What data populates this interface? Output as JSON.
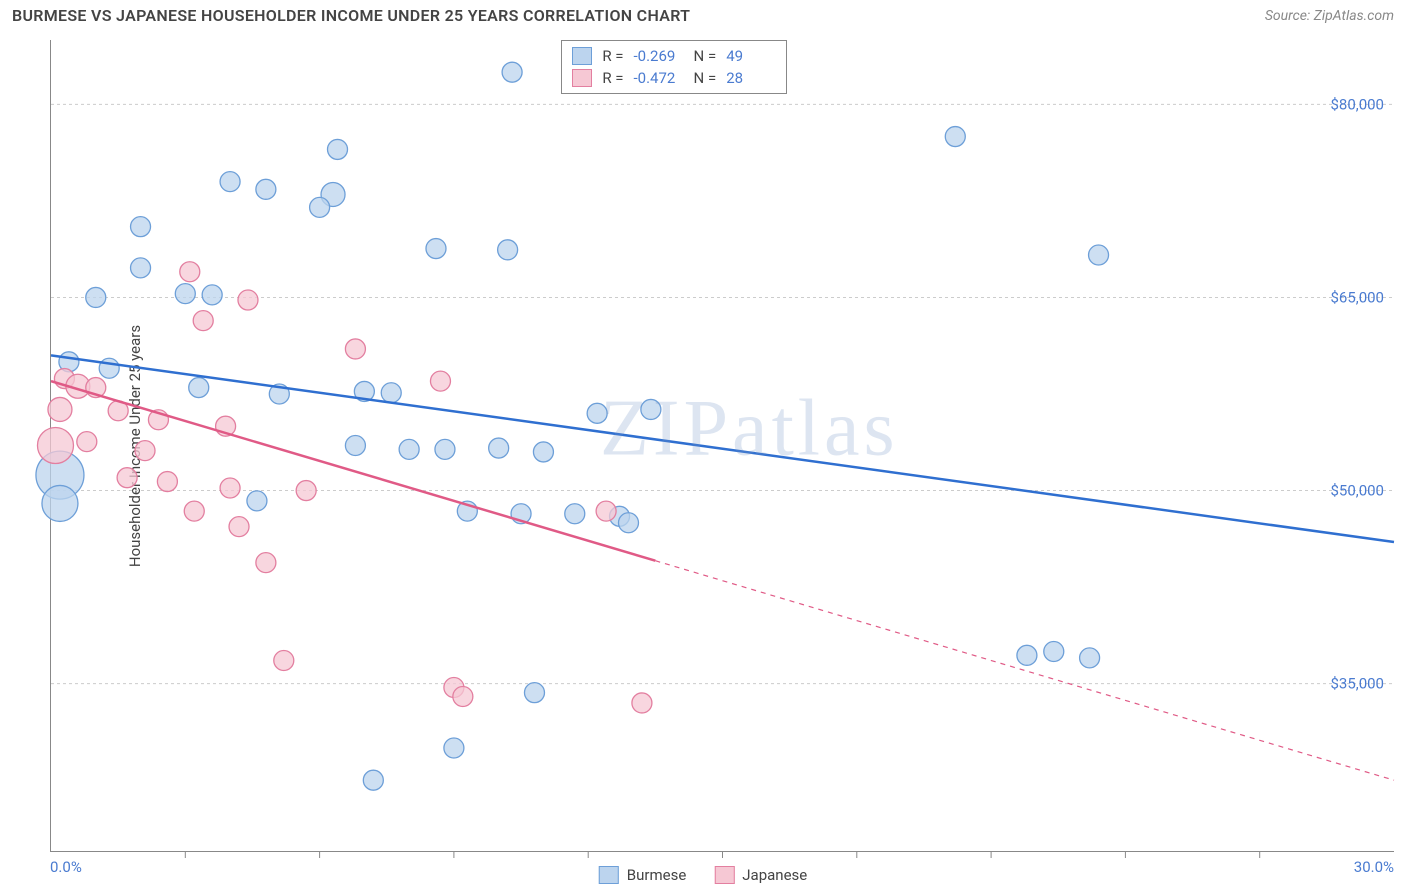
{
  "header": {
    "title": "BURMESE VS JAPANESE HOUSEHOLDER INCOME UNDER 25 YEARS CORRELATION CHART",
    "source": "Source: ZipAtlas.com"
  },
  "watermark": "ZIPatlas",
  "chart": {
    "type": "scatter",
    "y_axis_title": "Householder Income Under 25 years",
    "background_color": "#ffffff",
    "grid_color": "#cccccc",
    "axis_color": "#888888",
    "xlim": [
      0,
      30
    ],
    "ylim": [
      22000,
      85000
    ],
    "x_corner_labels": [
      "0.0%",
      "30.0%"
    ],
    "x_tick_positions": [
      3,
      6,
      9,
      12,
      15,
      18,
      21,
      24,
      27
    ],
    "y_ticks": [
      {
        "v": 35000,
        "label": "$35,000"
      },
      {
        "v": 50000,
        "label": "$50,000"
      },
      {
        "v": 65000,
        "label": "$65,000"
      },
      {
        "v": 80000,
        "label": "$80,000"
      }
    ],
    "series": [
      {
        "key": "burmese",
        "label": "Burmese",
        "marker_fill": "#bcd4ee",
        "marker_stroke": "#6d9fd8",
        "marker_fill_opacity": 0.75,
        "line_color": "#2f6fd0",
        "line_width": 2.5,
        "trend": {
          "x1": 0,
          "y1": 60500,
          "x2": 30,
          "y2": 46000,
          "dash_after_x": null
        },
        "stats": {
          "R": "-0.269",
          "N": "49"
        },
        "points": [
          {
            "x": 10.3,
            "y": 82500,
            "r": 10
          },
          {
            "x": 6.4,
            "y": 76500,
            "r": 10
          },
          {
            "x": 20.2,
            "y": 77500,
            "r": 10
          },
          {
            "x": 4.0,
            "y": 74000,
            "r": 10
          },
          {
            "x": 4.8,
            "y": 73400,
            "r": 10
          },
          {
            "x": 6.3,
            "y": 73000,
            "r": 12
          },
          {
            "x": 6.0,
            "y": 72000,
            "r": 10
          },
          {
            "x": 2.0,
            "y": 70500,
            "r": 10
          },
          {
            "x": 8.6,
            "y": 68800,
            "r": 10
          },
          {
            "x": 10.2,
            "y": 68700,
            "r": 10
          },
          {
            "x": 23.4,
            "y": 68300,
            "r": 10
          },
          {
            "x": 2.0,
            "y": 67300,
            "r": 10
          },
          {
            "x": 1.0,
            "y": 65000,
            "r": 10
          },
          {
            "x": 3.0,
            "y": 65300,
            "r": 10
          },
          {
            "x": 3.6,
            "y": 65200,
            "r": 10
          },
          {
            "x": 0.4,
            "y": 60000,
            "r": 10
          },
          {
            "x": 1.3,
            "y": 59500,
            "r": 10
          },
          {
            "x": 3.3,
            "y": 58000,
            "r": 10
          },
          {
            "x": 5.1,
            "y": 57500,
            "r": 10
          },
          {
            "x": 7.0,
            "y": 57700,
            "r": 10
          },
          {
            "x": 7.6,
            "y": 57600,
            "r": 10
          },
          {
            "x": 12.2,
            "y": 56000,
            "r": 10
          },
          {
            "x": 13.4,
            "y": 56300,
            "r": 10
          },
          {
            "x": 6.8,
            "y": 53500,
            "r": 10
          },
          {
            "x": 8.0,
            "y": 53200,
            "r": 10
          },
          {
            "x": 8.8,
            "y": 53200,
            "r": 10
          },
          {
            "x": 10.0,
            "y": 53300,
            "r": 10
          },
          {
            "x": 11.0,
            "y": 53000,
            "r": 10
          },
          {
            "x": 0.2,
            "y": 51200,
            "r": 24
          },
          {
            "x": 0.2,
            "y": 49000,
            "r": 18
          },
          {
            "x": 4.6,
            "y": 49200,
            "r": 10
          },
          {
            "x": 9.3,
            "y": 48400,
            "r": 10
          },
          {
            "x": 10.5,
            "y": 48200,
            "r": 10
          },
          {
            "x": 11.7,
            "y": 48200,
            "r": 10
          },
          {
            "x": 12.7,
            "y": 48000,
            "r": 10
          },
          {
            "x": 12.9,
            "y": 47500,
            "r": 10
          },
          {
            "x": 21.8,
            "y": 37200,
            "r": 10
          },
          {
            "x": 22.4,
            "y": 37500,
            "r": 10
          },
          {
            "x": 23.2,
            "y": 37000,
            "r": 10
          },
          {
            "x": 10.8,
            "y": 34300,
            "r": 10
          },
          {
            "x": 9.0,
            "y": 30000,
            "r": 10
          },
          {
            "x": 7.2,
            "y": 27500,
            "r": 10
          }
        ]
      },
      {
        "key": "japanese",
        "label": "Japanese",
        "marker_fill": "#f6c8d4",
        "marker_stroke": "#e37fa0",
        "marker_fill_opacity": 0.75,
        "line_color": "#e05a86",
        "line_width": 2.5,
        "trend": {
          "x1": 0,
          "y1": 58500,
          "x2": 30,
          "y2": 27500,
          "dash_after_x": 13.5
        },
        "stats": {
          "R": "-0.472",
          "N": "28"
        },
        "points": [
          {
            "x": 3.1,
            "y": 67000,
            "r": 10
          },
          {
            "x": 4.4,
            "y": 64800,
            "r": 10
          },
          {
            "x": 3.4,
            "y": 63200,
            "r": 10
          },
          {
            "x": 6.8,
            "y": 61000,
            "r": 10
          },
          {
            "x": 0.3,
            "y": 58700,
            "r": 10
          },
          {
            "x": 0.6,
            "y": 58100,
            "r": 12
          },
          {
            "x": 1.0,
            "y": 58000,
            "r": 10
          },
          {
            "x": 8.7,
            "y": 58500,
            "r": 10
          },
          {
            "x": 0.2,
            "y": 56300,
            "r": 12
          },
          {
            "x": 1.5,
            "y": 56200,
            "r": 10
          },
          {
            "x": 2.4,
            "y": 55500,
            "r": 10
          },
          {
            "x": 3.9,
            "y": 55000,
            "r": 10
          },
          {
            "x": 0.1,
            "y": 53500,
            "r": 18
          },
          {
            "x": 0.8,
            "y": 53800,
            "r": 10
          },
          {
            "x": 2.1,
            "y": 53100,
            "r": 10
          },
          {
            "x": 1.7,
            "y": 51000,
            "r": 10
          },
          {
            "x": 2.6,
            "y": 50700,
            "r": 10
          },
          {
            "x": 4.0,
            "y": 50200,
            "r": 10
          },
          {
            "x": 5.7,
            "y": 50000,
            "r": 10
          },
          {
            "x": 3.2,
            "y": 48400,
            "r": 10
          },
          {
            "x": 4.2,
            "y": 47200,
            "r": 10
          },
          {
            "x": 12.4,
            "y": 48400,
            "r": 10
          },
          {
            "x": 4.8,
            "y": 44400,
            "r": 10
          },
          {
            "x": 5.2,
            "y": 36800,
            "r": 10
          },
          {
            "x": 9.0,
            "y": 34700,
            "r": 10
          },
          {
            "x": 9.2,
            "y": 34000,
            "r": 10
          },
          {
            "x": 13.2,
            "y": 33500,
            "r": 10
          }
        ]
      }
    ],
    "legend_bottom": [
      "Burmese",
      "Japanese"
    ],
    "legend_top_labels": {
      "R": "R =",
      "N": "N ="
    }
  }
}
